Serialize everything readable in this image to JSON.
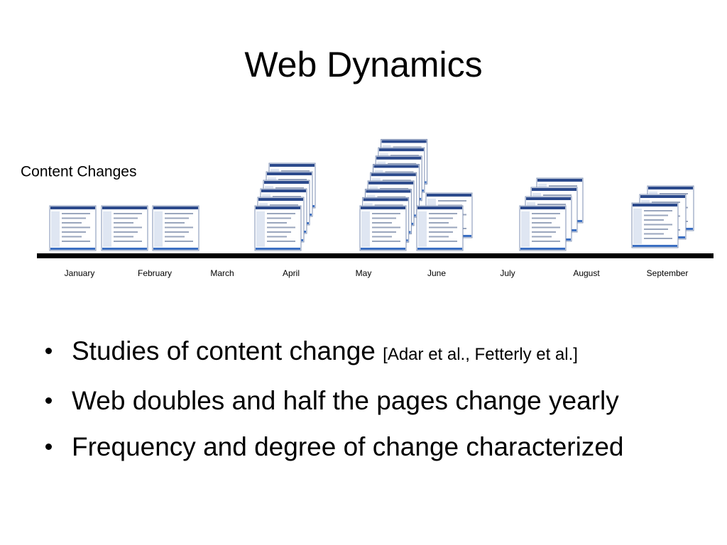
{
  "title": "Web Dynamics",
  "diagram": {
    "label": "Content Changes",
    "months": [
      "January",
      "February",
      "March",
      "April",
      "May",
      "June",
      "July",
      "August",
      "September"
    ]
  },
  "bullets": [
    {
      "text": "Studies of content change",
      "citation": "[Adar et al., Fetterly et al.]"
    },
    {
      "text": "Web doubles and half the pages change yearly"
    },
    {
      "text": "Frequency and degree of change characterized"
    }
  ]
}
